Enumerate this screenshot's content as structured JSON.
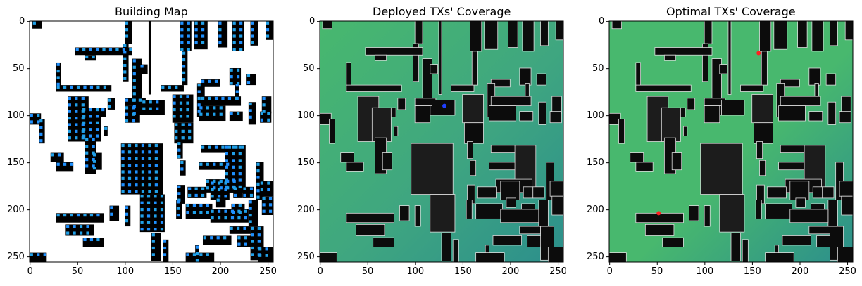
{
  "figure": {
    "panels": [
      {
        "title": "Building Map"
      },
      {
        "title": "Deployed TXs' Coverage"
      },
      {
        "title": "Optimal TXs' Coverage"
      }
    ],
    "x_ticks": [
      "0",
      "50",
      "100",
      "150",
      "200",
      "250"
    ],
    "y_ticks": [
      "0",
      "50",
      "100",
      "150",
      "200",
      "250"
    ],
    "axis_range": [
      0,
      256
    ],
    "colors": {
      "building": "#000000",
      "candidate_marker": "#1e90ff",
      "coverage_low": "#2c8f8c",
      "coverage_high": "#48b86e",
      "deployed_tx_marker": "#1f3fff",
      "optimal_tx_marker": "#ff2020"
    },
    "deployed_tx": [
      [
        131,
        90
      ]
    ],
    "optimal_tx": [
      [
        157,
        34
      ],
      [
        52,
        204
      ]
    ]
  }
}
